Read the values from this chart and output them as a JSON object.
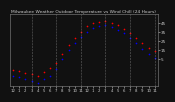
{
  "title": "Milwaukee Weather Outdoor Temperature vs Wind Chill (24 Hours)",
  "title_fontsize": 3.2,
  "bg_color": "#111111",
  "plot_bg": "#111111",
  "grid_color": "#888888",
  "temp_color": "#ff0000",
  "wc_color": "#0000ff",
  "x_hours": [
    0,
    1,
    2,
    3,
    4,
    5,
    6,
    7,
    8,
    9,
    10,
    11,
    12,
    13,
    14,
    15,
    16,
    17,
    18,
    19,
    20,
    21,
    22,
    23
  ],
  "temp_values": [
    -8,
    -9,
    -11,
    -12,
    -14,
    -10,
    -6,
    0,
    10,
    20,
    28,
    35,
    41,
    44,
    46,
    47,
    45,
    42,
    38,
    33,
    28,
    22,
    17,
    13
  ],
  "wc_values": [
    -14,
    -15,
    -18,
    -20,
    -22,
    -18,
    -14,
    -7,
    4,
    14,
    22,
    29,
    35,
    39,
    41,
    42,
    40,
    37,
    33,
    28,
    22,
    16,
    10,
    6
  ],
  "ylim": [
    -25,
    55
  ],
  "yticks": [
    5,
    15,
    25,
    35,
    45
  ],
  "ytick_labels": [
    "5",
    "15",
    "25",
    "35",
    "45"
  ],
  "vline_positions": [
    3,
    7,
    11,
    15,
    19,
    23
  ],
  "marker_size": 1.2,
  "text_color": "#cccccc"
}
